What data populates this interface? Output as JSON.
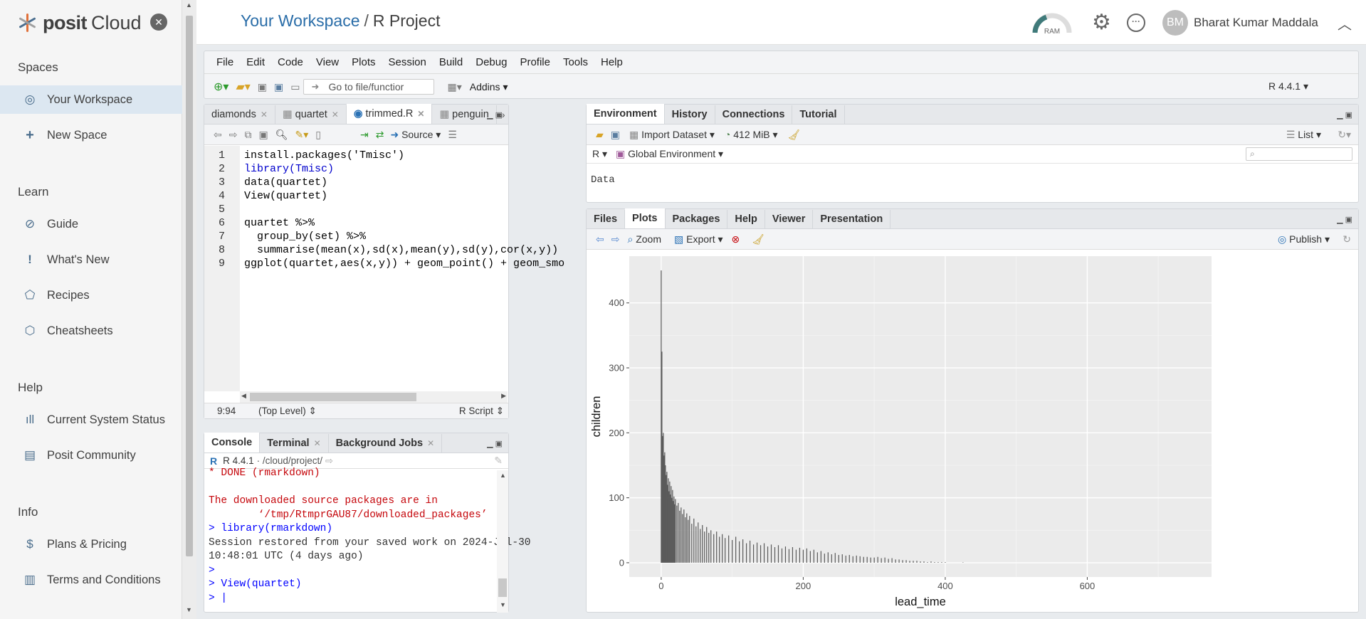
{
  "sidebar": {
    "logo_word": "posit",
    "logo_word2": "Cloud",
    "spaces_heading": "Spaces",
    "your_workspace": "Your Workspace",
    "new_space": "New Space",
    "learn_heading": "Learn",
    "guide": "Guide",
    "whats_new": "What's New",
    "recipes": "Recipes",
    "cheatsheets": "Cheatsheets",
    "help_heading": "Help",
    "system_status": "Current System Status",
    "community": "Posit Community",
    "info_heading": "Info",
    "plans": "Plans & Pricing",
    "terms": "Terms and Conditions"
  },
  "header": {
    "workspace_link": "Your Workspace",
    "separator": "/",
    "project": "R Project",
    "ram_label": "RAM",
    "avatar_initials": "BM",
    "user_name": "Bharat Kumar Maddala"
  },
  "menubar": {
    "items": [
      "File",
      "Edit",
      "Code",
      "View",
      "Plots",
      "Session",
      "Build",
      "Debug",
      "Profile",
      "Tools",
      "Help"
    ],
    "goto_placeholder": "Go to file/functior",
    "addins": "Addins",
    "r_version": "R 4.4.1"
  },
  "source": {
    "tabs": [
      "diamonds",
      "quartet",
      "trimmed.R",
      "penguin"
    ],
    "source_btn": "Source",
    "lines": [
      {
        "n": "1",
        "t": "install.packages('Tmisc')"
      },
      {
        "n": "2",
        "t": "library(Tmisc)"
      },
      {
        "n": "3",
        "t": "data(quartet)"
      },
      {
        "n": "4",
        "t": "View(quartet)"
      },
      {
        "n": "5",
        "t": ""
      },
      {
        "n": "6",
        "t": "quartet %>%"
      },
      {
        "n": "7",
        "t": "  group_by(set) %>%"
      },
      {
        "n": "8",
        "t": "  summarise(mean(x),sd(x),mean(y),sd(y),cor(x,y))"
      },
      {
        "n": "9",
        "t": "ggplot(quartet,aes(x,y)) + geom_point() + geom_smo"
      }
    ],
    "cursor_pos": "9:94",
    "scope": "(Top Level)",
    "filetype": "R Script"
  },
  "console": {
    "tabs": [
      "Console",
      "Terminal",
      "Background Jobs"
    ],
    "r_version": "R 4.4.1",
    "path": "· /cloud/project/",
    "lines": [
      {
        "cls": "red",
        "t": "* DONE (rmarkdown)"
      },
      {
        "cls": "",
        "t": ""
      },
      {
        "cls": "red",
        "t": "The downloaded source packages are in"
      },
      {
        "cls": "red",
        "t": "        ‘/tmp/RtmprGAU87/downloaded_packages’"
      },
      {
        "cls": "blue",
        "t": "> library(rmarkdown)"
      },
      {
        "cls": "",
        "t": "Session restored from your saved work on 2024-Jul-30"
      },
      {
        "cls": "",
        "t": "10:48:01 UTC (4 days ago)"
      },
      {
        "cls": "blue",
        "t": ">"
      },
      {
        "cls": "blue",
        "t": "> View(quartet)"
      },
      {
        "cls": "blue",
        "t": "> |"
      }
    ]
  },
  "env": {
    "tabs": [
      "Environment",
      "History",
      "Connections",
      "Tutorial"
    ],
    "import_dataset": "Import Dataset",
    "memory": "412 MiB",
    "list_label": "List",
    "lang": "R",
    "global_env": "Global Environment",
    "data_label": "Data"
  },
  "files": {
    "tabs": [
      "Files",
      "Plots",
      "Packages",
      "Help",
      "Viewer",
      "Presentation"
    ],
    "zoom": "Zoom",
    "export": "Export",
    "publish": "Publish"
  },
  "chart_data": {
    "type": "bar",
    "xlabel": "lead_time",
    "ylabel": "children",
    "xlim": [
      -45,
      775
    ],
    "ylim": [
      -22,
      472
    ],
    "xticks": [
      0,
      200,
      400,
      600
    ],
    "yticks": [
      0,
      100,
      200,
      300,
      400
    ],
    "grid": true,
    "points": [
      [
        0,
        450
      ],
      [
        1,
        325
      ],
      [
        2,
        195
      ],
      [
        3,
        200
      ],
      [
        4,
        165
      ],
      [
        5,
        170
      ],
      [
        6,
        150
      ],
      [
        7,
        135
      ],
      [
        8,
        140
      ],
      [
        9,
        120
      ],
      [
        10,
        130
      ],
      [
        11,
        110
      ],
      [
        12,
        125
      ],
      [
        13,
        105
      ],
      [
        14,
        118
      ],
      [
        15,
        100
      ],
      [
        16,
        112
      ],
      [
        17,
        95
      ],
      [
        18,
        102
      ],
      [
        19,
        90
      ],
      [
        20,
        98
      ],
      [
        22,
        88
      ],
      [
        24,
        92
      ],
      [
        26,
        80
      ],
      [
        28,
        85
      ],
      [
        30,
        75
      ],
      [
        32,
        82
      ],
      [
        34,
        70
      ],
      [
        36,
        76
      ],
      [
        38,
        66
      ],
      [
        40,
        72
      ],
      [
        43,
        60
      ],
      [
        46,
        68
      ],
      [
        49,
        56
      ],
      [
        52,
        62
      ],
      [
        55,
        52
      ],
      [
        58,
        58
      ],
      [
        61,
        48
      ],
      [
        64,
        55
      ],
      [
        67,
        46
      ],
      [
        70,
        50
      ],
      [
        74,
        44
      ],
      [
        78,
        48
      ],
      [
        82,
        40
      ],
      [
        86,
        44
      ],
      [
        90,
        38
      ],
      [
        95,
        42
      ],
      [
        100,
        35
      ],
      [
        105,
        40
      ],
      [
        110,
        33
      ],
      [
        115,
        36
      ],
      [
        120,
        30
      ],
      [
        125,
        34
      ],
      [
        130,
        28
      ],
      [
        135,
        31
      ],
      [
        140,
        27
      ],
      [
        145,
        30
      ],
      [
        150,
        25
      ],
      [
        155,
        28
      ],
      [
        160,
        24
      ],
      [
        165,
        27
      ],
      [
        170,
        22
      ],
      [
        175,
        25
      ],
      [
        180,
        21
      ],
      [
        185,
        24
      ],
      [
        190,
        20
      ],
      [
        195,
        23
      ],
      [
        200,
        20
      ],
      [
        205,
        22
      ],
      [
        210,
        18
      ],
      [
        215,
        20
      ],
      [
        220,
        16
      ],
      [
        225,
        18
      ],
      [
        230,
        14
      ],
      [
        235,
        16
      ],
      [
        240,
        13
      ],
      [
        245,
        15
      ],
      [
        250,
        12
      ],
      [
        255,
        13
      ],
      [
        260,
        11
      ],
      [
        265,
        12
      ],
      [
        270,
        10
      ],
      [
        275,
        11
      ],
      [
        280,
        10
      ],
      [
        285,
        9
      ],
      [
        290,
        9
      ],
      [
        295,
        8
      ],
      [
        300,
        8
      ],
      [
        305,
        9
      ],
      [
        310,
        7
      ],
      [
        315,
        8
      ],
      [
        320,
        6
      ],
      [
        325,
        7
      ],
      [
        330,
        5
      ],
      [
        335,
        5
      ],
      [
        340,
        4
      ],
      [
        345,
        4
      ],
      [
        350,
        3
      ],
      [
        355,
        3
      ],
      [
        360,
        3
      ],
      [
        365,
        2
      ],
      [
        370,
        2
      ],
      [
        375,
        1
      ],
      [
        380,
        2
      ],
      [
        385,
        1
      ],
      [
        390,
        1
      ],
      [
        395,
        1
      ],
      [
        400,
        1
      ],
      [
        425,
        0.6
      ]
    ]
  }
}
